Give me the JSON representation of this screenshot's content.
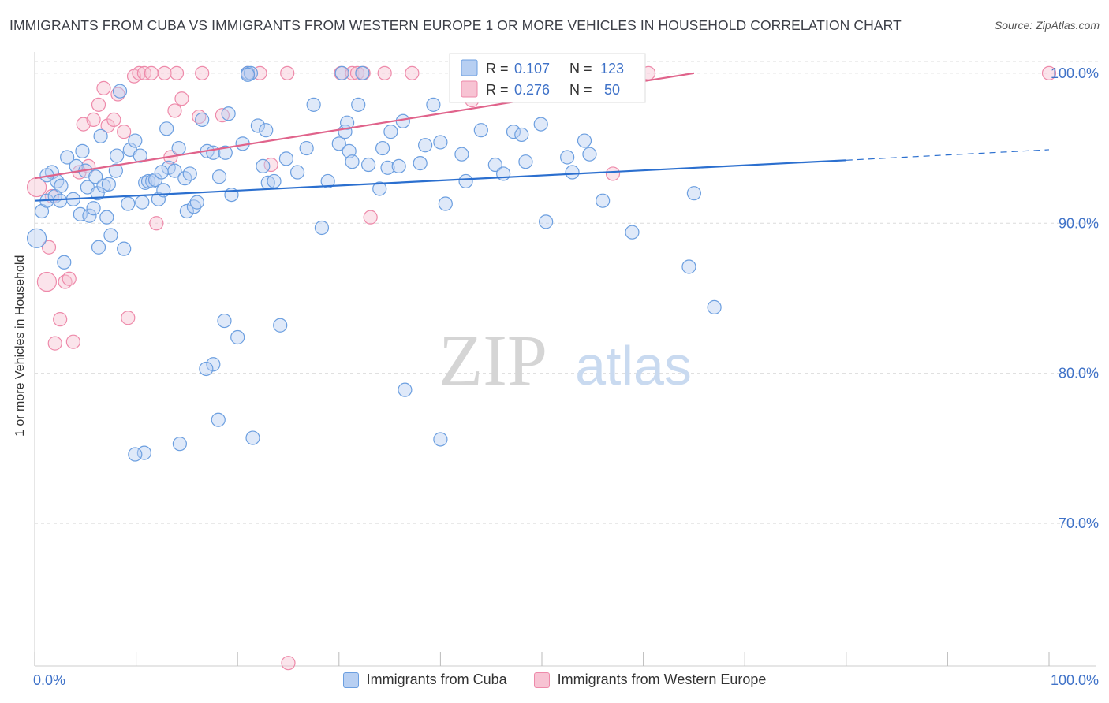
{
  "title": "IMMIGRANTS FROM CUBA VS IMMIGRANTS FROM WESTERN EUROPE 1 OR MORE VEHICLES IN HOUSEHOLD CORRELATION CHART",
  "source": "Source: ZipAtlas.com",
  "watermark": {
    "zip": "ZIP",
    "atlas": "atlas"
  },
  "colors": {
    "cuba": "#6c9fe0",
    "cuba_fill": "#b7cff2",
    "cuba_line": "#2b6fcf",
    "weu": "#ee8aaa",
    "weu_fill": "#f7c3d3",
    "weu_line": "#e0638b",
    "axis_text": "#3f72c8"
  },
  "legend_box": {
    "r_label": "R =",
    "n_label": "N =",
    "rows": [
      {
        "r": "0.107",
        "n": "123"
      },
      {
        "r": "0.276",
        "n": "50"
      }
    ]
  },
  "chart_data": {
    "type": "scatter",
    "title": "IMMIGRANTS FROM CUBA VS IMMIGRANTS FROM WESTERN EUROPE 1 OR MORE VEHICLES IN HOUSEHOLD CORRELATION CHART",
    "xlabel": "",
    "ylabel": "1 or more Vehicles in Household",
    "xlim": [
      0,
      100
    ],
    "ylim": [
      60.5,
      101.2
    ],
    "x_tick_labels": [
      "0.0%",
      "100.0%"
    ],
    "y_ticks": [
      70,
      80,
      90,
      100
    ],
    "y_tick_labels": [
      "70.0%",
      "80.0%",
      "90.0%",
      "100.0%"
    ],
    "grid": true,
    "series": [
      {
        "name": "Immigrants from Cuba",
        "R": 0.107,
        "N": 123,
        "trend": {
          "x": [
            0,
            80
          ],
          "y": [
            91.5,
            94.2
          ],
          "dashed_to": [
            100,
            94.9
          ]
        },
        "points": [
          [
            0.2,
            89.0
          ],
          [
            0.7,
            90.8
          ],
          [
            1.2,
            91.5
          ],
          [
            1.7,
            93.4
          ],
          [
            2.0,
            91.8
          ],
          [
            2.2,
            92.8
          ],
          [
            2.6,
            92.5
          ],
          [
            2.5,
            91.5
          ],
          [
            3.2,
            94.4
          ],
          [
            3.8,
            91.6
          ],
          [
            4.1,
            93.8
          ],
          [
            4.5,
            90.6
          ],
          [
            4.7,
            94.8
          ],
          [
            5.0,
            93.5
          ],
          [
            5.4,
            90.5
          ],
          [
            5.2,
            92.4
          ],
          [
            5.8,
            91.0
          ],
          [
            6.0,
            93.1
          ],
          [
            6.2,
            92.0
          ],
          [
            6.3,
            88.4
          ],
          [
            6.5,
            95.8
          ],
          [
            6.8,
            92.5
          ],
          [
            7.1,
            90.4
          ],
          [
            7.3,
            92.6
          ],
          [
            7.5,
            89.2
          ],
          [
            8.0,
            93.5
          ],
          [
            8.1,
            94.5
          ],
          [
            8.4,
            98.8
          ],
          [
            8.8,
            88.3
          ],
          [
            9.2,
            91.3
          ],
          [
            9.4,
            94.9
          ],
          [
            9.9,
            95.5
          ],
          [
            10.4,
            94.5
          ],
          [
            10.6,
            91.4
          ],
          [
            10.9,
            92.7
          ],
          [
            11.2,
            92.8
          ],
          [
            11.6,
            92.8
          ],
          [
            11.9,
            92.9
          ],
          [
            12.2,
            91.6
          ],
          [
            12.7,
            92.2
          ],
          [
            13.0,
            96.3
          ],
          [
            13.2,
            93.7
          ],
          [
            13.8,
            93.5
          ],
          [
            14.2,
            95.0
          ],
          [
            14.8,
            93.0
          ],
          [
            15.0,
            90.8
          ],
          [
            15.3,
            93.3
          ],
          [
            15.7,
            91.1
          ],
          [
            16.0,
            91.4
          ],
          [
            16.5,
            96.9
          ],
          [
            17.0,
            94.8
          ],
          [
            17.6,
            94.7
          ],
          [
            18.2,
            93.1
          ],
          [
            18.8,
            94.7
          ],
          [
            19.1,
            97.3
          ],
          [
            19.4,
            91.9
          ],
          [
            20.0,
            82.4
          ],
          [
            20.5,
            95.3
          ],
          [
            21.0,
            100.0
          ],
          [
            21.3,
            100.0
          ],
          [
            22.0,
            96.5
          ],
          [
            22.5,
            93.8
          ],
          [
            22.8,
            96.2
          ],
          [
            23.0,
            92.7
          ],
          [
            23.6,
            92.8
          ],
          [
            24.2,
            83.2
          ],
          [
            24.8,
            94.3
          ],
          [
            25.9,
            93.4
          ],
          [
            26.8,
            95.0
          ],
          [
            27.5,
            97.9
          ],
          [
            28.3,
            89.7
          ],
          [
            28.9,
            92.8
          ],
          [
            30.0,
            95.3
          ],
          [
            30.3,
            100.0
          ],
          [
            30.6,
            96.1
          ],
          [
            30.8,
            96.7
          ],
          [
            31.0,
            94.8
          ],
          [
            31.3,
            94.1
          ],
          [
            31.9,
            97.9
          ],
          [
            32.3,
            100.0
          ],
          [
            32.9,
            93.9
          ],
          [
            34.0,
            92.3
          ],
          [
            34.3,
            95.0
          ],
          [
            34.8,
            93.7
          ],
          [
            35.1,
            96.1
          ],
          [
            35.9,
            93.8
          ],
          [
            36.3,
            96.8
          ],
          [
            38.0,
            94.0
          ],
          [
            38.5,
            95.2
          ],
          [
            39.3,
            97.9
          ],
          [
            40.0,
            95.4
          ],
          [
            40.5,
            91.3
          ],
          [
            42.1,
            94.6
          ],
          [
            42.5,
            92.8
          ],
          [
            44.0,
            96.2
          ],
          [
            45.4,
            93.9
          ],
          [
            46.2,
            93.3
          ],
          [
            47.2,
            96.1
          ],
          [
            48.0,
            95.9
          ],
          [
            48.4,
            94.1
          ],
          [
            49.9,
            96.6
          ],
          [
            50.4,
            90.1
          ],
          [
            52.5,
            94.4
          ],
          [
            53.0,
            93.4
          ],
          [
            54.2,
            95.5
          ],
          [
            54.7,
            94.6
          ],
          [
            56.0,
            91.5
          ],
          [
            58.9,
            89.4
          ],
          [
            64.5,
            87.1
          ],
          [
            65.0,
            92.0
          ],
          [
            67.0,
            84.4
          ],
          [
            1.2,
            93.2
          ],
          [
            2.9,
            87.4
          ],
          [
            12.5,
            93.4
          ],
          [
            18.7,
            83.5
          ],
          [
            21.0,
            99.9
          ],
          [
            17.6,
            80.6
          ],
          [
            16.9,
            80.3
          ],
          [
            14.3,
            75.3
          ],
          [
            10.8,
            74.7
          ],
          [
            9.9,
            74.6
          ],
          [
            18.1,
            76.9
          ],
          [
            21.5,
            75.7
          ],
          [
            36.5,
            78.9
          ],
          [
            40.0,
            75.6
          ]
        ]
      },
      {
        "name": "Immigrants from Western Europe",
        "R": 0.276,
        "N": 50,
        "trend": {
          "x": [
            0,
            65
          ],
          "y": [
            93.0,
            100.0
          ]
        },
        "points": [
          [
            0.2,
            92.4
          ],
          [
            1.2,
            86.1
          ],
          [
            1.4,
            88.4
          ],
          [
            1.7,
            91.8
          ],
          [
            2.0,
            82.0
          ],
          [
            2.5,
            83.6
          ],
          [
            3.0,
            86.1
          ],
          [
            3.4,
            86.3
          ],
          [
            3.8,
            82.1
          ],
          [
            4.4,
            93.4
          ],
          [
            4.8,
            96.6
          ],
          [
            5.3,
            93.8
          ],
          [
            5.8,
            96.9
          ],
          [
            6.3,
            97.9
          ],
          [
            6.8,
            99.0
          ],
          [
            7.2,
            96.5
          ],
          [
            7.8,
            96.9
          ],
          [
            8.2,
            98.6
          ],
          [
            8.8,
            96.1
          ],
          [
            9.2,
            83.7
          ],
          [
            9.8,
            99.8
          ],
          [
            10.3,
            100.0
          ],
          [
            10.8,
            100.0
          ],
          [
            11.5,
            100.0
          ],
          [
            12.0,
            90.0
          ],
          [
            12.8,
            100.0
          ],
          [
            13.4,
            94.4
          ],
          [
            13.8,
            97.5
          ],
          [
            14.5,
            98.3
          ],
          [
            14.0,
            100.0
          ],
          [
            16.2,
            97.1
          ],
          [
            16.5,
            100.0
          ],
          [
            18.5,
            97.2
          ],
          [
            21.0,
            100.0
          ],
          [
            22.2,
            100.0
          ],
          [
            23.3,
            93.9
          ],
          [
            24.9,
            100.0
          ],
          [
            25.0,
            60.7
          ],
          [
            30.2,
            100.0
          ],
          [
            31.3,
            100.0
          ],
          [
            31.8,
            100.0
          ],
          [
            32.4,
            100.0
          ],
          [
            33.1,
            90.4
          ],
          [
            34.5,
            100.0
          ],
          [
            37.2,
            100.0
          ],
          [
            41.8,
            100.0
          ],
          [
            43.1,
            98.2
          ],
          [
            57.0,
            93.3
          ],
          [
            60.5,
            100.0
          ],
          [
            100,
            100.0
          ]
        ]
      }
    ]
  },
  "legend_bottom": [
    "Immigrants from Cuba",
    "Immigrants from Western Europe"
  ]
}
